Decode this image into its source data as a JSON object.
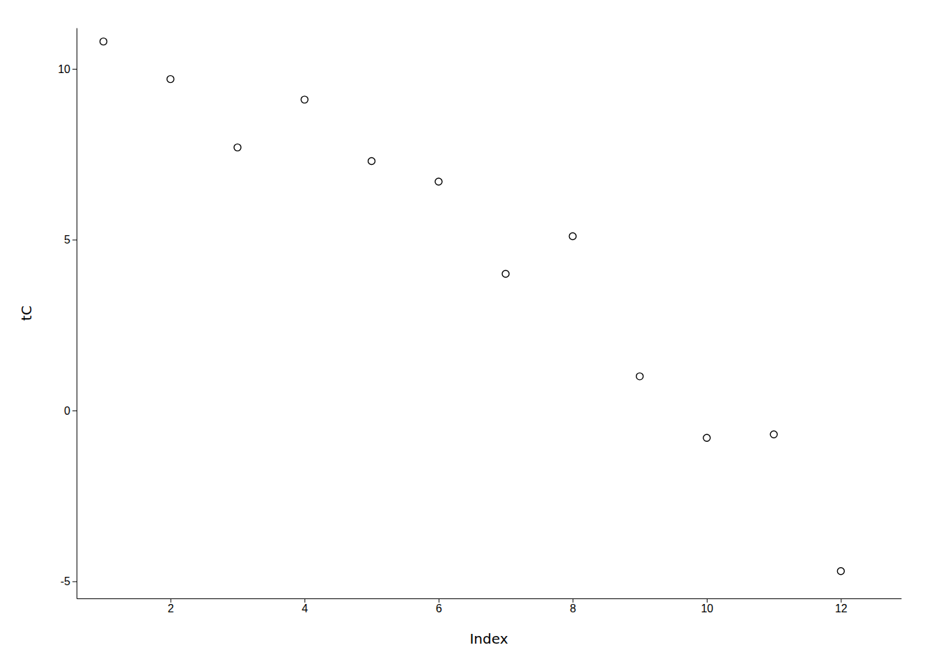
{
  "chart_data": {
    "type": "scatter",
    "xlabel": "Index",
    "ylabel": "tC",
    "x": [
      1,
      2,
      3,
      4,
      5,
      6,
      7,
      8,
      9,
      10,
      11,
      12
    ],
    "y": [
      10.8,
      9.7,
      7.7,
      9.1,
      7.3,
      6.7,
      4.0,
      5.1,
      1.0,
      -0.8,
      -0.7,
      -4.7
    ],
    "xlim": [
      0.6,
      12.9
    ],
    "ylim": [
      -5.5,
      11.2
    ],
    "xticks": [
      2,
      4,
      6,
      8,
      10,
      12
    ],
    "yticks": [
      -5,
      0,
      5,
      10
    ],
    "color": "black",
    "marker": "circle",
    "grid": false
  }
}
